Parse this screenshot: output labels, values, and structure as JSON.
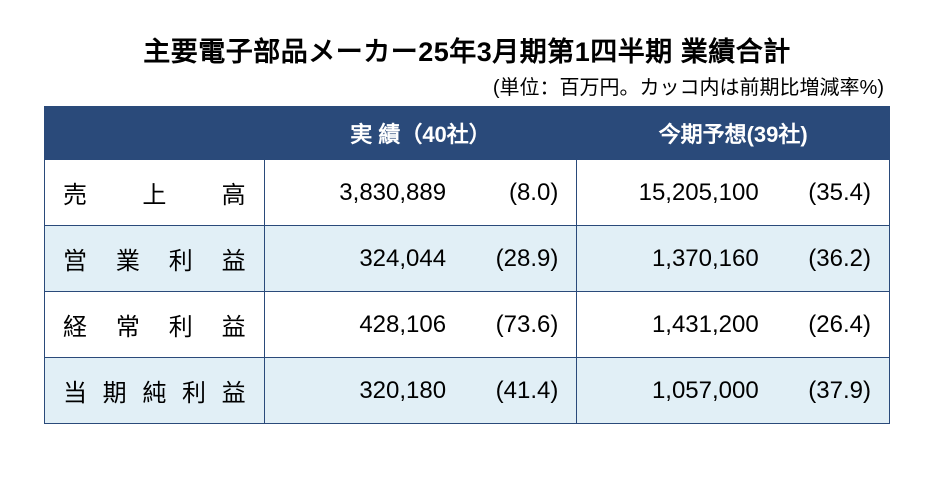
{
  "title": "主要電子部品メーカー25年3月期第1四半期  業績合計",
  "subtitle": "(単位：百万円。カッコ内は前期比増減率%)",
  "table": {
    "type": "table",
    "header_bg": "#2a4a7a",
    "header_fg": "#ffffff",
    "border_color": "#2a4a7a",
    "alt_row_bg": "#e1eff6",
    "base_row_bg": "#ffffff",
    "title_fontsize": 27,
    "header_fontsize": 22,
    "cell_fontsize": 24,
    "columns": {
      "label": "",
      "actual": "実  績（40社）",
      "forecast": "今期予想(39社)"
    },
    "rows": [
      {
        "label": "売上高",
        "actual_value": "3,830,889",
        "actual_pct": "(8.0)",
        "forecast_value": "15,205,100",
        "forecast_pct": "(35.4)"
      },
      {
        "label": "営業利益",
        "actual_value": "324,044",
        "actual_pct": "(28.9)",
        "forecast_value": "1,370,160",
        "forecast_pct": "(36.2)"
      },
      {
        "label": "経常利益",
        "actual_value": "428,106",
        "actual_pct": "(73.6)",
        "forecast_value": "1,431,200",
        "forecast_pct": "(26.4)"
      },
      {
        "label": "当期純利益",
        "actual_value": "320,180",
        "actual_pct": "(41.4)",
        "forecast_value": "1,057,000",
        "forecast_pct": "(37.9)"
      }
    ]
  }
}
